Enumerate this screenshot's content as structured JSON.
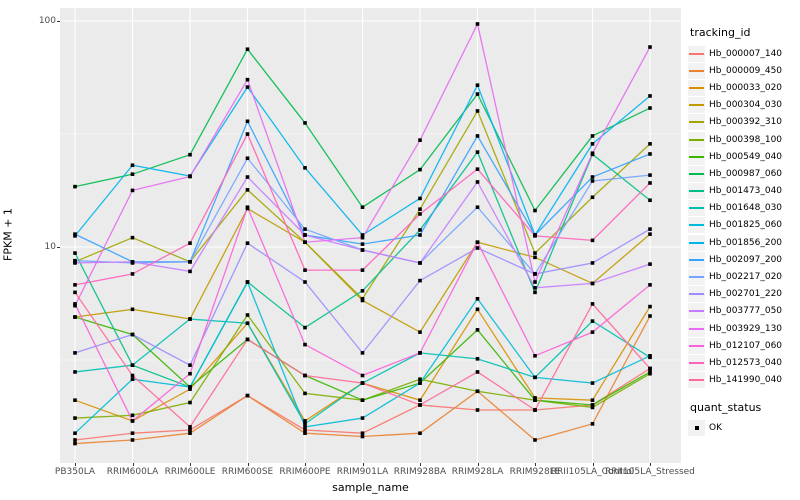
{
  "figure": {
    "x_axis_title": "sample_name",
    "y_axis_title": "FPKM + 1",
    "y_tick_labels": [
      "100",
      "10"
    ],
    "legend_title": "tracking_id",
    "quant_legend_title": "quant_status",
    "quant_legend_item": "OK"
  },
  "colors": {
    "page_bg": "#ffffff",
    "panel_bg": "#ebebeb",
    "gridline": "#ffffff",
    "tick_label": "#4d4d4d",
    "axis_title": "#000000",
    "legend_key_bg": "#f2f2f2",
    "point_color": "#000000"
  },
  "chart_data": {
    "type": "line",
    "title": "",
    "xlabel": "sample_name",
    "ylabel": "FPKM + 1",
    "x_type": "categorical",
    "y_scale": "log10",
    "ylim": [
      1.1,
      115
    ],
    "y_major_gridlines": [
      10,
      100
    ],
    "y_minor_gridlines": [
      3.162,
      31.62
    ],
    "grid": true,
    "legend_position": "right",
    "point_marker": {
      "shape": "square",
      "color": "#000000",
      "status_label": "OK"
    },
    "categories": [
      "PB350LA",
      "RRIM600LA",
      "RRIM600LE",
      "RRIM600SE",
      "RRIM600PE",
      "RRIM901LA",
      "RRIM928BA",
      "RRIM928LA",
      "RRIM928LE",
      "RRII105LA_Control",
      "RRII105LA_Stressed"
    ],
    "series": [
      {
        "name": "Hb_000007_140",
        "color": "#F8766D",
        "values": [
          1.4,
          1.5,
          1.55,
          2.2,
          1.55,
          1.5,
          2.0,
          1.9,
          1.9,
          2.0,
          2.9
        ]
      },
      {
        "name": "Hb_000009_450",
        "color": "#EA8331",
        "values": [
          1.35,
          1.4,
          1.5,
          2.2,
          1.5,
          1.45,
          1.5,
          2.3,
          1.4,
          1.65,
          4.95
        ]
      },
      {
        "name": "Hb_000033_020",
        "color": "#D89000",
        "values": [
          2.1,
          1.7,
          2.35,
          4.6,
          1.7,
          2.5,
          2.1,
          5.3,
          2.15,
          2.1,
          5.45
        ]
      },
      {
        "name": "Hb_000304_030",
        "color": "#C09B00",
        "values": [
          4.9,
          5.3,
          4.8,
          14.8,
          10.5,
          5.8,
          4.2,
          10.5,
          9.0,
          6.9,
          11.4
        ]
      },
      {
        "name": "Hb_000392_310",
        "color": "#A3A500",
        "values": [
          8.6,
          11.0,
          8.6,
          17.9,
          10.5,
          5.9,
          14.7,
          40.0,
          9.4,
          16.6,
          28.6
        ]
      },
      {
        "name": "Hb_000398_100",
        "color": "#7CAE00",
        "values": [
          1.75,
          1.8,
          2.05,
          5.0,
          2.25,
          2.1,
          2.6,
          2.3,
          2.1,
          1.95,
          2.75
        ]
      },
      {
        "name": "Hb_000549_040",
        "color": "#39B600",
        "values": [
          4.9,
          4.1,
          2.4,
          3.9,
          2.7,
          2.1,
          2.5,
          4.3,
          2.1,
          2.0,
          2.8
        ]
      },
      {
        "name": "Hb_000987_060",
        "color": "#00BB4E",
        "values": [
          18.5,
          21.0,
          25.6,
          75.0,
          35.4,
          15.0,
          22.0,
          47.5,
          14.5,
          31.0,
          41.2
        ]
      },
      {
        "name": "Hb_001473_040",
        "color": "#00C087",
        "values": [
          9.4,
          3.0,
          2.4,
          7.0,
          4.4,
          6.4,
          11.9,
          26.3,
          6.3,
          25.7,
          16.1
        ]
      },
      {
        "name": "Hb_001648_030",
        "color": "#00C0B2",
        "values": [
          2.8,
          3.0,
          4.8,
          4.6,
          1.65,
          2.5,
          3.4,
          3.2,
          2.65,
          4.7,
          3.25
        ]
      },
      {
        "name": "Hb_001825_060",
        "color": "#00BCD8",
        "values": [
          1.5,
          2.6,
          2.4,
          7.0,
          1.6,
          1.75,
          2.5,
          5.9,
          2.65,
          2.5,
          3.3
        ]
      },
      {
        "name": "Hb_001856_200",
        "color": "#00B4F0",
        "values": [
          11.2,
          23.0,
          20.6,
          51.0,
          22.4,
          11.3,
          16.4,
          52.0,
          11.3,
          28.6,
          46.6
        ]
      },
      {
        "name": "Hb_002097_200",
        "color": "#35A2FF",
        "values": [
          11.4,
          8.6,
          8.6,
          36.0,
          11.3,
          10.3,
          11.3,
          31.0,
          11.3,
          20.4,
          25.8
        ]
      },
      {
        "name": "Hb_002217_020",
        "color": "#74A4FF",
        "values": [
          8.7,
          8.5,
          8.6,
          24.7,
          12.0,
          9.7,
          8.5,
          15.0,
          7.6,
          19.6,
          20.8
        ]
      },
      {
        "name": "Hb_002701_220",
        "color": "#9C8CFF",
        "values": [
          3.4,
          4.1,
          3.0,
          10.4,
          7.0,
          3.4,
          7.1,
          9.9,
          7.6,
          8.5,
          12.0
        ]
      },
      {
        "name": "Hb_003777_050",
        "color": "#C77CFF",
        "values": [
          8.5,
          8.6,
          7.8,
          20.4,
          11.3,
          9.7,
          8.5,
          19.4,
          6.6,
          6.9,
          8.4
        ]
      },
      {
        "name": "Hb_003929_130",
        "color": "#E76BF3",
        "values": [
          5.5,
          17.8,
          20.5,
          55.0,
          10.5,
          11.0,
          29.7,
          97.0,
          7.0,
          26.0,
          76.7
        ]
      },
      {
        "name": "Hb_012107_060",
        "color": "#FA62DB",
        "values": [
          5.6,
          1.7,
          2.75,
          15.0,
          3.7,
          2.7,
          3.4,
          10.5,
          3.3,
          4.2,
          6.8
        ]
      },
      {
        "name": "Hb_012573_040",
        "color": "#FF62BC",
        "values": [
          6.8,
          7.6,
          10.4,
          31.6,
          7.9,
          7.9,
          14.0,
          22.1,
          11.2,
          10.7,
          19.2
        ]
      },
      {
        "name": "Hb_141990_040",
        "color": "#FF6A98",
        "values": [
          6.3,
          2.7,
          1.6,
          3.9,
          2.7,
          2.5,
          2.0,
          2.8,
          1.9,
          5.6,
          2.9
        ]
      }
    ]
  }
}
